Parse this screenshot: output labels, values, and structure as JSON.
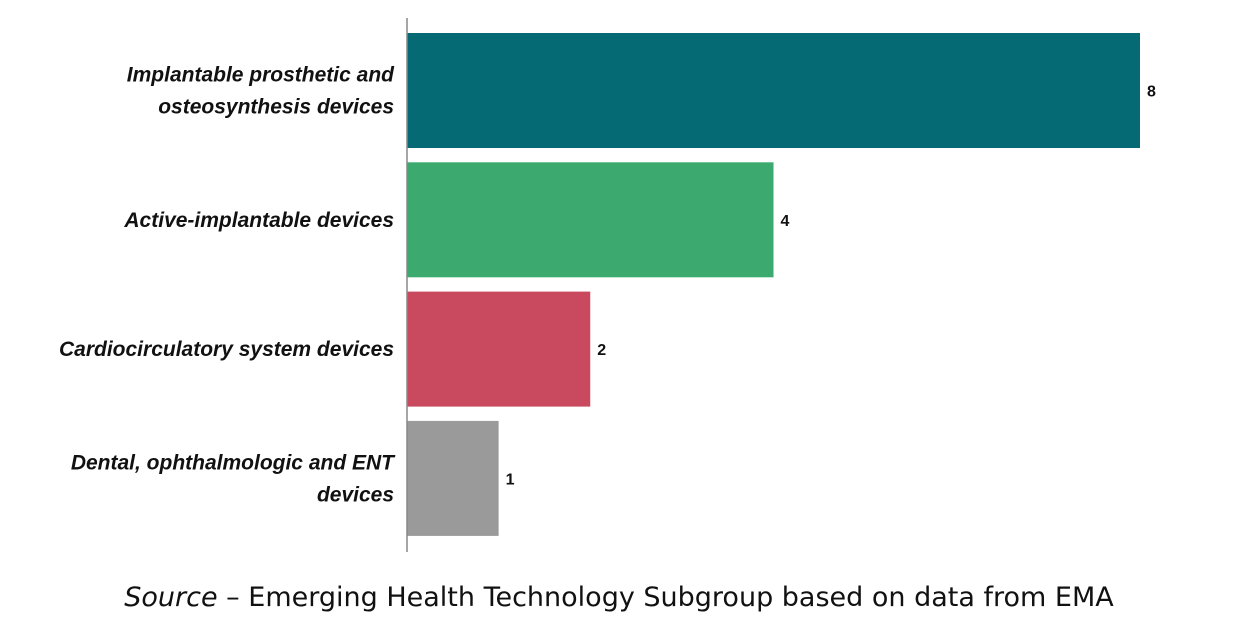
{
  "chart_data": {
    "type": "bar",
    "orientation": "horizontal",
    "categories": [
      [
        "Implantable prosthetic and",
        "osteosynthesis devices"
      ],
      [
        "Active-implantable devices"
      ],
      [
        "Cardiocirculatory system devices"
      ],
      [
        "Dental, ophthalmologic and ENT",
        "devices"
      ]
    ],
    "values": [
      8,
      4,
      2,
      1
    ],
    "colors": [
      "#066a74",
      "#3caa6e",
      "#c94a5e",
      "#9a9a9a"
    ],
    "axis_color": "#888888",
    "xlim": [
      0,
      8
    ],
    "grid": false,
    "legend": "none",
    "title": "",
    "xlabel": "",
    "ylabel": ""
  },
  "source": {
    "prefix": "Source",
    "text": " – Emerging Health Technology Subgroup based on data from EMA"
  }
}
